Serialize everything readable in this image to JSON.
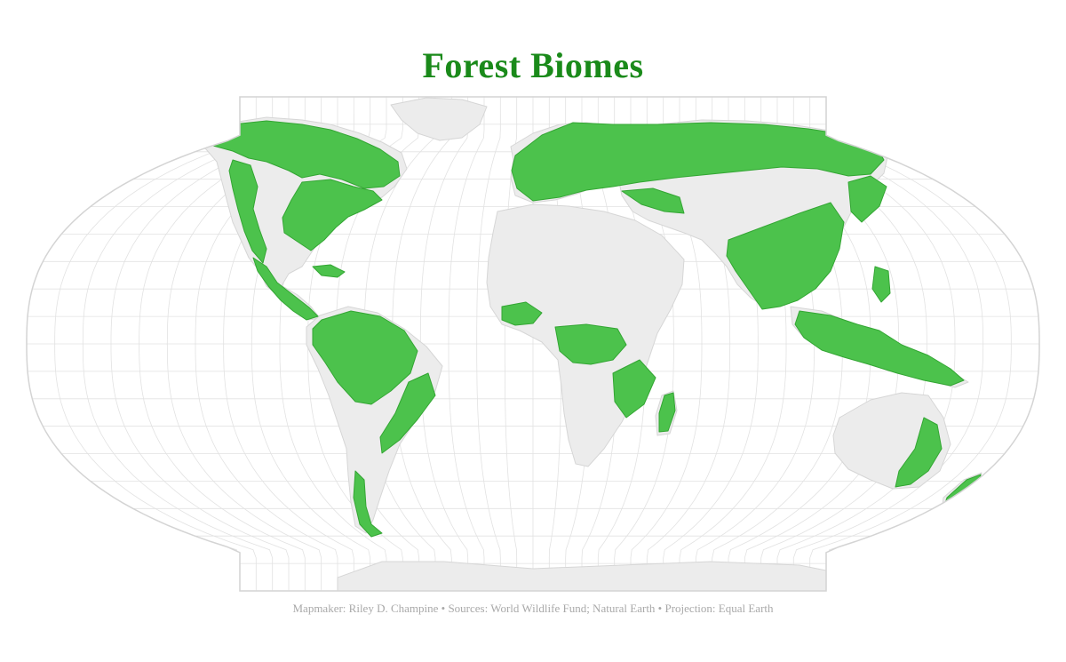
{
  "map": {
    "title": "Forest Biomes",
    "credits": "Mapmaker: Riley D. Champine • Sources: World Wildlife Fund; Natural Earth • Projection: Equal Earth",
    "projection": "Equal Earth",
    "legend": "none",
    "graticule": true,
    "colors": {
      "title": "#1a8a1a",
      "forest": "#4cc24c",
      "forest_edge": "#33a633",
      "land": "#ececec",
      "land_edge": "#d6d6d6",
      "ocean": "#ffffff",
      "graticule": "#e2e2e2",
      "frame": "#d4d4d4",
      "credits": "#a9a9a9"
    }
  }
}
